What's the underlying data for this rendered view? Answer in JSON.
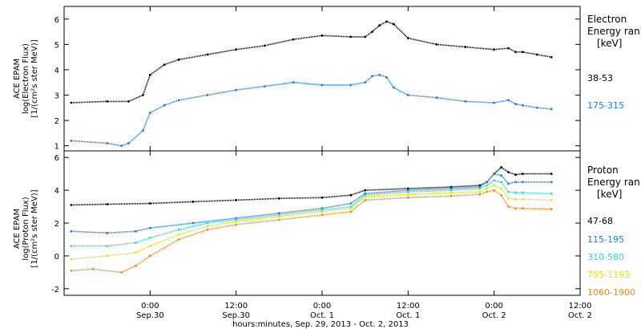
{
  "chart_data": [
    {
      "type": "scatter",
      "panel": "electron",
      "ylabel": [
        "ACE EPAM",
        "log(Electron Flux)",
        "[1/(cm²s ster MeV)]"
      ],
      "ylim": [
        0.8,
        6.5
      ],
      "yticks": [
        1,
        2,
        3,
        4,
        5,
        6
      ],
      "xlim": [
        -12,
        60
      ],
      "grid": false,
      "legend_title": [
        "Electron",
        "Energy ran",
        "[keV]"
      ],
      "series": [
        {
          "name": "38-53",
          "color": "#000000",
          "x": [
            -11,
            -6,
            -3,
            -1,
            0,
            2,
            4,
            8,
            12,
            16,
            20,
            24,
            28,
            30,
            31,
            32,
            33,
            34,
            36,
            40,
            44,
            48,
            50,
            51,
            52,
            54,
            56
          ],
          "y": [
            2.7,
            2.75,
            2.75,
            3.0,
            3.8,
            4.2,
            4.4,
            4.6,
            4.8,
            4.95,
            5.2,
            5.35,
            5.3,
            5.3,
            5.5,
            5.75,
            5.9,
            5.8,
            5.25,
            5.0,
            4.9,
            4.8,
            4.85,
            4.7,
            4.7,
            4.6,
            4.5
          ]
        },
        {
          "name": "175-315",
          "color": "#1c7ee0",
          "x": [
            -11,
            -6,
            -4,
            -3,
            -1,
            0,
            2,
            4,
            8,
            12,
            16,
            20,
            24,
            28,
            30,
            31,
            32,
            33,
            34,
            36,
            40,
            44,
            48,
            50,
            51,
            52,
            54,
            56
          ],
          "y": [
            1.2,
            1.1,
            1.0,
            1.1,
            1.6,
            2.3,
            2.6,
            2.8,
            3.0,
            3.2,
            3.35,
            3.5,
            3.4,
            3.4,
            3.5,
            3.75,
            3.8,
            3.7,
            3.3,
            3.0,
            2.9,
            2.75,
            2.7,
            2.8,
            2.65,
            2.6,
            2.5,
            2.45
          ]
        }
      ]
    },
    {
      "type": "scatter",
      "panel": "proton",
      "ylabel": [
        "ACE EPAM",
        "log(Proton Flux)",
        "[1/(cm²s ster MeV)]"
      ],
      "ylim": [
        -2.4,
        6.4
      ],
      "yticks": [
        -2,
        0,
        2,
        4,
        6
      ],
      "xlim": [
        -12,
        60
      ],
      "grid": false,
      "legend_title": [
        "Proton",
        "Energy ran",
        "[keV]"
      ],
      "series": [
        {
          "name": "47-68",
          "color": "#000000",
          "x": [
            -11,
            -6,
            0,
            6,
            12,
            18,
            24,
            28,
            30,
            36,
            42,
            46,
            47,
            48,
            49,
            50,
            51,
            52,
            56
          ],
          "y": [
            3.1,
            3.15,
            3.2,
            3.3,
            3.4,
            3.5,
            3.55,
            3.7,
            4.0,
            4.1,
            4.2,
            4.3,
            4.5,
            5.0,
            5.4,
            5.1,
            4.95,
            5.0,
            5.0
          ]
        },
        {
          "name": "115-195",
          "color": "#1c7ee0",
          "x": [
            -11,
            -6,
            -2,
            0,
            6,
            12,
            18,
            24,
            28,
            30,
            36,
            42,
            46,
            47,
            48,
            49,
            50,
            51,
            52,
            56
          ],
          "y": [
            1.5,
            1.4,
            1.5,
            1.7,
            2.0,
            2.3,
            2.6,
            2.9,
            3.2,
            3.8,
            4.0,
            4.1,
            4.2,
            4.5,
            5.0,
            4.9,
            4.4,
            4.5,
            4.5,
            4.5
          ]
        },
        {
          "name": "310-580",
          "color": "#2fd8d0",
          "x": [
            -11,
            -6,
            -2,
            0,
            4,
            8,
            12,
            18,
            24,
            28,
            30,
            36,
            42,
            46,
            47,
            48,
            49,
            50,
            51,
            52,
            56
          ],
          "y": [
            0.6,
            0.6,
            0.8,
            1.1,
            1.6,
            2.0,
            2.2,
            2.5,
            2.8,
            3.0,
            3.7,
            3.9,
            4.0,
            4.1,
            4.3,
            4.6,
            4.5,
            3.9,
            3.85,
            3.85,
            3.8
          ]
        },
        {
          "name": "795-1193",
          "color": "#d6ea10",
          "x": [
            -11,
            -6,
            -2,
            0,
            4,
            8,
            12,
            18,
            24,
            28,
            30,
            36,
            42,
            46,
            47,
            48,
            49,
            50,
            51,
            52,
            56
          ],
          "y": [
            -0.2,
            0.0,
            0.2,
            0.6,
            1.3,
            1.8,
            2.1,
            2.4,
            2.7,
            2.9,
            3.6,
            3.75,
            3.85,
            3.9,
            4.1,
            4.3,
            4.1,
            3.5,
            3.45,
            3.45,
            3.4
          ]
        },
        {
          "name": "1060-1900",
          "color": "#f08a1c",
          "x": [
            -11,
            -8,
            -4,
            -2,
            0,
            4,
            8,
            12,
            18,
            24,
            28,
            30,
            36,
            42,
            46,
            47,
            48,
            49,
            50,
            51,
            52,
            56
          ],
          "y": [
            -0.9,
            -0.8,
            -1.0,
            -0.6,
            0.0,
            1.0,
            1.6,
            1.9,
            2.2,
            2.5,
            2.7,
            3.4,
            3.55,
            3.65,
            3.75,
            3.9,
            4.0,
            3.7,
            3.0,
            2.9,
            2.9,
            2.85
          ]
        }
      ]
    }
  ],
  "xaxis": {
    "ticks": [
      {
        "x": 0,
        "line1": "0:00",
        "line2": "Sep.30"
      },
      {
        "x": 12,
        "line1": "12:00",
        "line2": "Sep.30"
      },
      {
        "x": 24,
        "line1": "0:00",
        "line2": "Oct. 1"
      },
      {
        "x": 36,
        "line1": "12:00",
        "line2": "Oct. 1"
      },
      {
        "x": 48,
        "line1": "0:00",
        "line2": "Oct. 2"
      },
      {
        "x": 60,
        "line1": "12:00",
        "line2": "Oct. 2"
      }
    ],
    "label": "hours:minutes, Sep. 29, 2013 - Oct. 2, 2013"
  }
}
